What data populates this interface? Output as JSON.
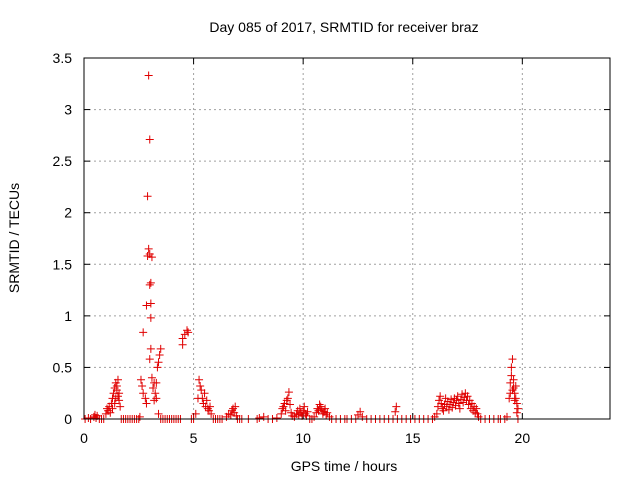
{
  "chart_data": {
    "type": "scatter",
    "title": "Day 085 of 2017, SRMTID for receiver braz",
    "xlabel": "GPS time / hours",
    "ylabel": "SRMTID / TECUs",
    "xlim": [
      0,
      24
    ],
    "ylim": [
      0,
      3.5
    ],
    "xticks": [
      0,
      5,
      10,
      15,
      20
    ],
    "xtick_labels": [
      "0",
      "5",
      "10",
      "15",
      "20"
    ],
    "yticks": [
      0,
      0.5,
      1,
      1.5,
      2,
      2.5,
      3,
      3.5
    ],
    "ytick_labels": [
      "0",
      "0.5",
      "1",
      "1.5",
      "2",
      "2.5",
      "3",
      "3.5"
    ],
    "grid": true,
    "marker": "+",
    "color": "#e00000",
    "series": [
      {
        "name": "SRMTID",
        "points": [
          [
            0.05,
            0.0
          ],
          [
            0.2,
            0.01
          ],
          [
            0.3,
            0.0
          ],
          [
            0.45,
            0.02
          ],
          [
            0.5,
            0.04
          ],
          [
            0.55,
            0.01
          ],
          [
            0.6,
            0.03
          ],
          [
            0.7,
            0.0
          ],
          [
            0.8,
            0.0
          ],
          [
            0.9,
            0.0
          ],
          [
            1.0,
            0.05
          ],
          [
            1.05,
            0.1
          ],
          [
            1.1,
            0.08
          ],
          [
            1.15,
            0.12
          ],
          [
            1.2,
            0.06
          ],
          [
            1.25,
            0.15
          ],
          [
            1.3,
            0.2
          ],
          [
            1.35,
            0.25
          ],
          [
            1.4,
            0.3
          ],
          [
            1.45,
            0.35
          ],
          [
            1.5,
            0.28
          ],
          [
            1.55,
            0.22
          ],
          [
            1.6,
            0.18
          ],
          [
            1.3,
            0.1
          ],
          [
            1.4,
            0.15
          ],
          [
            1.5,
            0.32
          ],
          [
            1.55,
            0.38
          ],
          [
            1.45,
            0.2
          ],
          [
            1.6,
            0.25
          ],
          [
            1.65,
            0.12
          ],
          [
            1.7,
            0.0
          ],
          [
            1.8,
            0.0
          ],
          [
            1.9,
            0.0
          ],
          [
            2.0,
            0.0
          ],
          [
            2.1,
            0.0
          ],
          [
            2.2,
            0.0
          ],
          [
            2.3,
            0.0
          ],
          [
            2.4,
            0.0
          ],
          [
            2.5,
            0.0
          ],
          [
            2.55,
            0.02
          ],
          [
            2.6,
            0.38
          ],
          [
            2.65,
            0.32
          ],
          [
            2.7,
            0.25
          ],
          [
            2.7,
            0.84
          ],
          [
            2.8,
            0.2
          ],
          [
            2.85,
            0.15
          ],
          [
            2.85,
            1.1
          ],
          [
            2.9,
            2.16
          ],
          [
            2.9,
            1.58
          ],
          [
            2.95,
            1.65
          ],
          [
            2.95,
            3.33
          ],
          [
            3.0,
            2.71
          ],
          [
            3.0,
            1.6
          ],
          [
            3.0,
            1.3
          ],
          [
            3.0,
            0.58
          ],
          [
            3.05,
            1.32
          ],
          [
            3.05,
            1.12
          ],
          [
            3.05,
            0.98
          ],
          [
            3.05,
            0.68
          ],
          [
            3.1,
            1.57
          ],
          [
            3.1,
            0.4
          ],
          [
            3.15,
            0.3
          ],
          [
            3.2,
            0.35
          ],
          [
            3.25,
            0.25
          ],
          [
            3.3,
            0.2
          ],
          [
            3.35,
            0.5
          ],
          [
            3.4,
            0.55
          ],
          [
            3.45,
            0.62
          ],
          [
            3.5,
            0.68
          ],
          [
            3.3,
            0.35
          ],
          [
            3.2,
            0.18
          ],
          [
            3.4,
            0.05
          ],
          [
            3.5,
            0.0
          ],
          [
            3.6,
            0.0
          ],
          [
            3.7,
            0.0
          ],
          [
            3.8,
            0.0
          ],
          [
            3.9,
            0.0
          ],
          [
            4.0,
            0.0
          ],
          [
            4.1,
            0.0
          ],
          [
            4.2,
            0.0
          ],
          [
            4.3,
            0.0
          ],
          [
            4.4,
            0.0
          ],
          [
            4.5,
            0.78
          ],
          [
            4.5,
            0.72
          ],
          [
            4.6,
            0.82
          ],
          [
            4.7,
            0.86
          ],
          [
            4.75,
            0.84
          ],
          [
            4.9,
            0.0
          ],
          [
            5.0,
            0.0
          ],
          [
            5.1,
            0.05
          ],
          [
            5.2,
            0.2
          ],
          [
            5.25,
            0.38
          ],
          [
            5.3,
            0.32
          ],
          [
            5.35,
            0.28
          ],
          [
            5.4,
            0.2
          ],
          [
            5.45,
            0.15
          ],
          [
            5.5,
            0.25
          ],
          [
            5.55,
            0.12
          ],
          [
            5.6,
            0.18
          ],
          [
            5.65,
            0.1
          ],
          [
            5.7,
            0.08
          ],
          [
            5.75,
            0.12
          ],
          [
            5.8,
            0.05
          ],
          [
            5.9,
            0.0
          ],
          [
            6.0,
            0.0
          ],
          [
            6.1,
            0.0
          ],
          [
            6.2,
            0.0
          ],
          [
            6.3,
            0.0
          ],
          [
            6.5,
            0.02
          ],
          [
            6.6,
            0.05
          ],
          [
            6.7,
            0.04
          ],
          [
            6.75,
            0.08
          ],
          [
            6.8,
            0.1
          ],
          [
            6.85,
            0.06
          ],
          [
            6.9,
            0.12
          ],
          [
            6.95,
            0.03
          ],
          [
            7.0,
            0.0
          ],
          [
            7.1,
            0.0
          ],
          [
            7.2,
            0.0
          ],
          [
            7.5,
            0.0
          ],
          [
            7.9,
            0.0
          ],
          [
            8.0,
            0.01
          ],
          [
            8.2,
            0.02
          ],
          [
            8.4,
            0.0
          ],
          [
            8.6,
            0.0
          ],
          [
            8.8,
            0.01
          ],
          [
            9.0,
            0.05
          ],
          [
            9.05,
            0.1
          ],
          [
            9.1,
            0.12
          ],
          [
            9.15,
            0.15
          ],
          [
            9.2,
            0.08
          ],
          [
            9.25,
            0.18
          ],
          [
            9.3,
            0.2
          ],
          [
            9.35,
            0.26
          ],
          [
            9.4,
            0.14
          ],
          [
            9.45,
            0.06
          ],
          [
            9.5,
            0.03
          ],
          [
            9.6,
            0.02
          ],
          [
            9.7,
            0.05
          ],
          [
            9.75,
            0.08
          ],
          [
            9.8,
            0.04
          ],
          [
            9.85,
            0.1
          ],
          [
            9.9,
            0.06
          ],
          [
            9.95,
            0.03
          ],
          [
            10.0,
            0.08
          ],
          [
            10.05,
            0.12
          ],
          [
            10.1,
            0.05
          ],
          [
            10.15,
            0.03
          ],
          [
            10.2,
            0.07
          ],
          [
            10.3,
            0.0
          ],
          [
            10.4,
            0.0
          ],
          [
            10.5,
            0.02
          ],
          [
            10.6,
            0.06
          ],
          [
            10.65,
            0.1
          ],
          [
            10.7,
            0.08
          ],
          [
            10.75,
            0.14
          ],
          [
            10.8,
            0.12
          ],
          [
            10.85,
            0.09
          ],
          [
            10.9,
            0.05
          ],
          [
            10.95,
            0.07
          ],
          [
            11.0,
            0.1
          ],
          [
            11.05,
            0.04
          ],
          [
            11.1,
            0.06
          ],
          [
            11.2,
            0.02
          ],
          [
            11.3,
            0.0
          ],
          [
            11.5,
            0.0
          ],
          [
            11.7,
            0.0
          ],
          [
            11.9,
            0.0
          ],
          [
            12.0,
            0.0
          ],
          [
            12.2,
            0.0
          ],
          [
            12.4,
            0.0
          ],
          [
            12.5,
            0.04
          ],
          [
            12.6,
            0.07
          ],
          [
            12.7,
            0.02
          ],
          [
            12.9,
            0.0
          ],
          [
            13.1,
            0.0
          ],
          [
            13.3,
            0.0
          ],
          [
            13.5,
            0.0
          ],
          [
            13.7,
            0.0
          ],
          [
            13.9,
            0.0
          ],
          [
            14.1,
            0.0
          ],
          [
            14.2,
            0.07
          ],
          [
            14.25,
            0.12
          ],
          [
            14.3,
            0.0
          ],
          [
            14.5,
            0.0
          ],
          [
            14.7,
            0.0
          ],
          [
            14.9,
            0.0
          ],
          [
            15.1,
            0.0
          ],
          [
            15.3,
            0.0
          ],
          [
            15.5,
            0.0
          ],
          [
            15.7,
            0.0
          ],
          [
            15.9,
            0.0
          ],
          [
            16.0,
            0.02
          ],
          [
            16.1,
            0.05
          ],
          [
            16.15,
            0.12
          ],
          [
            16.2,
            0.18
          ],
          [
            16.25,
            0.22
          ],
          [
            16.3,
            0.15
          ],
          [
            16.35,
            0.1
          ],
          [
            16.4,
            0.08
          ],
          [
            16.45,
            0.14
          ],
          [
            16.5,
            0.2
          ],
          [
            16.55,
            0.12
          ],
          [
            16.6,
            0.17
          ],
          [
            16.65,
            0.09
          ],
          [
            16.7,
            0.14
          ],
          [
            16.75,
            0.19
          ],
          [
            16.8,
            0.11
          ],
          [
            16.85,
            0.16
          ],
          [
            16.9,
            0.2
          ],
          [
            16.95,
            0.13
          ],
          [
            17.0,
            0.18
          ],
          [
            17.05,
            0.22
          ],
          [
            17.1,
            0.15
          ],
          [
            17.15,
            0.1
          ],
          [
            17.2,
            0.19
          ],
          [
            17.25,
            0.24
          ],
          [
            17.3,
            0.16
          ],
          [
            17.35,
            0.21
          ],
          [
            17.4,
            0.25
          ],
          [
            17.45,
            0.18
          ],
          [
            17.5,
            0.22
          ],
          [
            17.55,
            0.14
          ],
          [
            17.6,
            0.18
          ],
          [
            17.65,
            0.1
          ],
          [
            17.7,
            0.15
          ],
          [
            17.75,
            0.08
          ],
          [
            17.8,
            0.12
          ],
          [
            17.85,
            0.06
          ],
          [
            17.9,
            0.1
          ],
          [
            17.95,
            0.05
          ],
          [
            18.0,
            0.02
          ],
          [
            18.1,
            0.0
          ],
          [
            18.3,
            0.0
          ],
          [
            18.5,
            0.0
          ],
          [
            18.7,
            0.0
          ],
          [
            18.9,
            0.0
          ],
          [
            19.0,
            0.0
          ],
          [
            19.2,
            0.0
          ],
          [
            19.3,
            0.02
          ],
          [
            19.4,
            0.2
          ],
          [
            19.45,
            0.35
          ],
          [
            19.5,
            0.42
          ],
          [
            19.55,
            0.58
          ],
          [
            19.5,
            0.5
          ],
          [
            19.6,
            0.38
          ],
          [
            19.6,
            0.3
          ],
          [
            19.65,
            0.25
          ],
          [
            19.7,
            0.2
          ],
          [
            19.75,
            0.15
          ],
          [
            19.8,
            0.1
          ],
          [
            19.45,
            0.25
          ],
          [
            19.55,
            0.28
          ],
          [
            19.7,
            0.32
          ],
          [
            19.65,
            0.18
          ],
          [
            19.75,
            0.06
          ],
          [
            19.8,
            0.0
          ]
        ]
      }
    ]
  }
}
